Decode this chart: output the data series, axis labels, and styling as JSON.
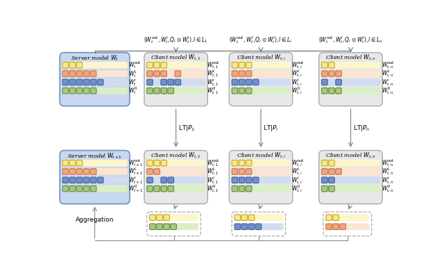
{
  "yellow_color": "#f5e6a0",
  "yellow_border": "#c8a800",
  "orange_color": "#f0a878",
  "orange_border": "#c87050",
  "blue_color": "#7090cc",
  "blue_border": "#4060a0",
  "green_color": "#a8c880",
  "green_border": "#608840",
  "server_bg": "#c8d8f0",
  "client_bg": "#e8e8e8",
  "row_yellow_bg": "#fdf5cc",
  "row_orange_bg": "#fce5d0",
  "row_blue_bg": "#d0dcf0",
  "row_green_bg": "#daefc8"
}
